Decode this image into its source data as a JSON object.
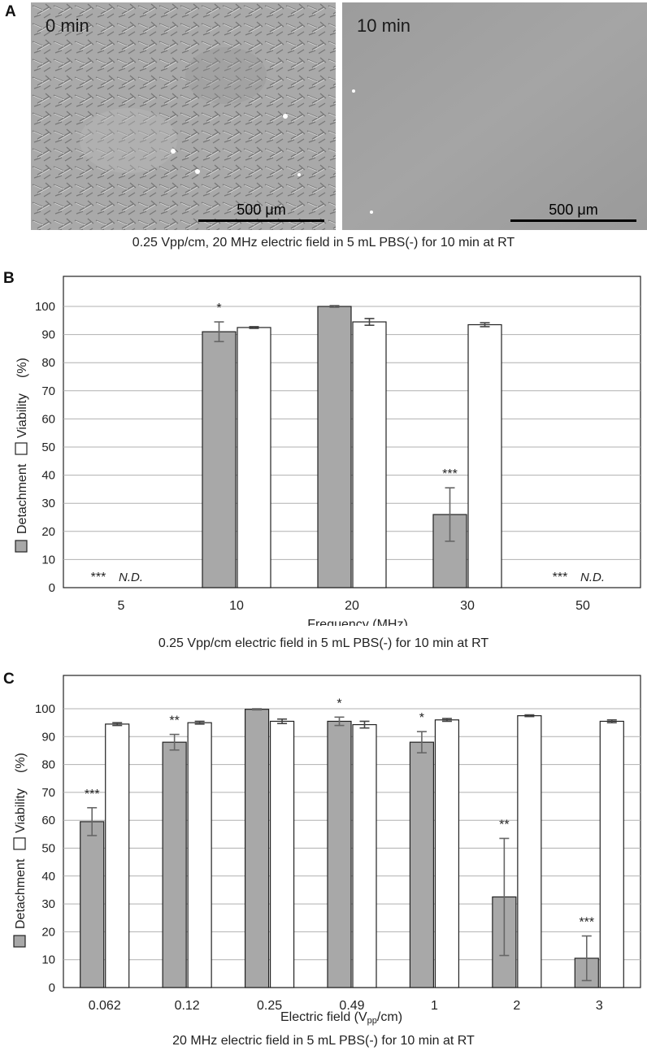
{
  "panels": {
    "A": {
      "letter": "A",
      "images": [
        {
          "label": "0 min",
          "scale_bar": "500 μm"
        },
        {
          "label": "10 min",
          "scale_bar": "500 μm"
        }
      ],
      "caption": "0.25 Vpp/cm, 20 MHz electric field in 5 mL PBS(-) for 10 min at RT"
    },
    "B": {
      "letter": "B",
      "caption": "0.25 Vpp/cm electric field in 5 mL PBS(-) for 10 min at RT"
    },
    "C": {
      "letter": "C",
      "caption": "20 MHz electric field in 5 mL PBS(-) for 10 min at RT"
    }
  },
  "colors": {
    "detachment": "#a8a8a8",
    "viability": "#ffffff",
    "grid": "#b0b0b0",
    "axis": "#222222"
  },
  "chart_data": [
    {
      "type": "bar",
      "panel": "B",
      "title": "",
      "xlabel": "Frequency (MHz)",
      "ylabel": "Detachment  Viability  (%)",
      "ylabel_parts": [
        "Detachment",
        "Viability",
        "(%)"
      ],
      "ylim": [
        0,
        100
      ],
      "yticks": [
        0,
        10,
        20,
        30,
        40,
        50,
        60,
        70,
        80,
        90,
        100
      ],
      "grid": true,
      "categories": [
        "5",
        "10",
        "20",
        "30",
        "50"
      ],
      "series": [
        {
          "name": "Detachment",
          "values": [
            null,
            91,
            100,
            26,
            null
          ],
          "errors": [
            null,
            3.5,
            0.3,
            9.5,
            null
          ]
        },
        {
          "name": "Viability",
          "values": [
            null,
            92.5,
            94.5,
            93.5,
            null
          ],
          "errors": [
            null,
            0.3,
            1.2,
            0.7,
            null
          ]
        }
      ],
      "annotations": [
        {
          "category": 0,
          "stars": "***",
          "note": "N.D."
        },
        {
          "category": 1,
          "stars": "*",
          "note": ""
        },
        {
          "category": 3,
          "stars": "***",
          "note": ""
        },
        {
          "category": 4,
          "stars": "***",
          "note": "N.D."
        }
      ]
    },
    {
      "type": "bar",
      "panel": "C",
      "title": "",
      "xlabel": "Electric field (Vpp/cm)",
      "xlabel_main": "Electric field (V",
      "xlabel_sub": "pp",
      "xlabel_tail": "/cm)",
      "ylabel": "Detachment  Viability  (%)",
      "ylabel_parts": [
        "Detachment",
        "Viability",
        "(%)"
      ],
      "ylim": [
        0,
        100
      ],
      "yticks": [
        0,
        10,
        20,
        30,
        40,
        50,
        60,
        70,
        80,
        90,
        100
      ],
      "grid": true,
      "categories": [
        "0.062",
        "0.12",
        "0.25",
        "0.49",
        "1",
        "2",
        "3"
      ],
      "series": [
        {
          "name": "Detachment",
          "values": [
            59.5,
            88,
            99.8,
            95.5,
            88,
            32.5,
            10.5
          ],
          "errors": [
            5,
            2.8,
            0.2,
            1.5,
            3.8,
            21,
            8
          ]
        },
        {
          "name": "Viability",
          "values": [
            94.5,
            95,
            95.5,
            94.3,
            96,
            97.5,
            95.5
          ],
          "errors": [
            0.5,
            0.5,
            0.8,
            1.2,
            0.5,
            0.3,
            0.5
          ]
        }
      ],
      "annotations": [
        {
          "category": 0,
          "stars": "***",
          "note": ""
        },
        {
          "category": 1,
          "stars": "**",
          "note": ""
        },
        {
          "category": 3,
          "stars": "*",
          "note": ""
        },
        {
          "category": 4,
          "stars": "*",
          "note": ""
        },
        {
          "category": 5,
          "stars": "**",
          "note": ""
        },
        {
          "category": 6,
          "stars": "***",
          "note": ""
        }
      ]
    }
  ]
}
